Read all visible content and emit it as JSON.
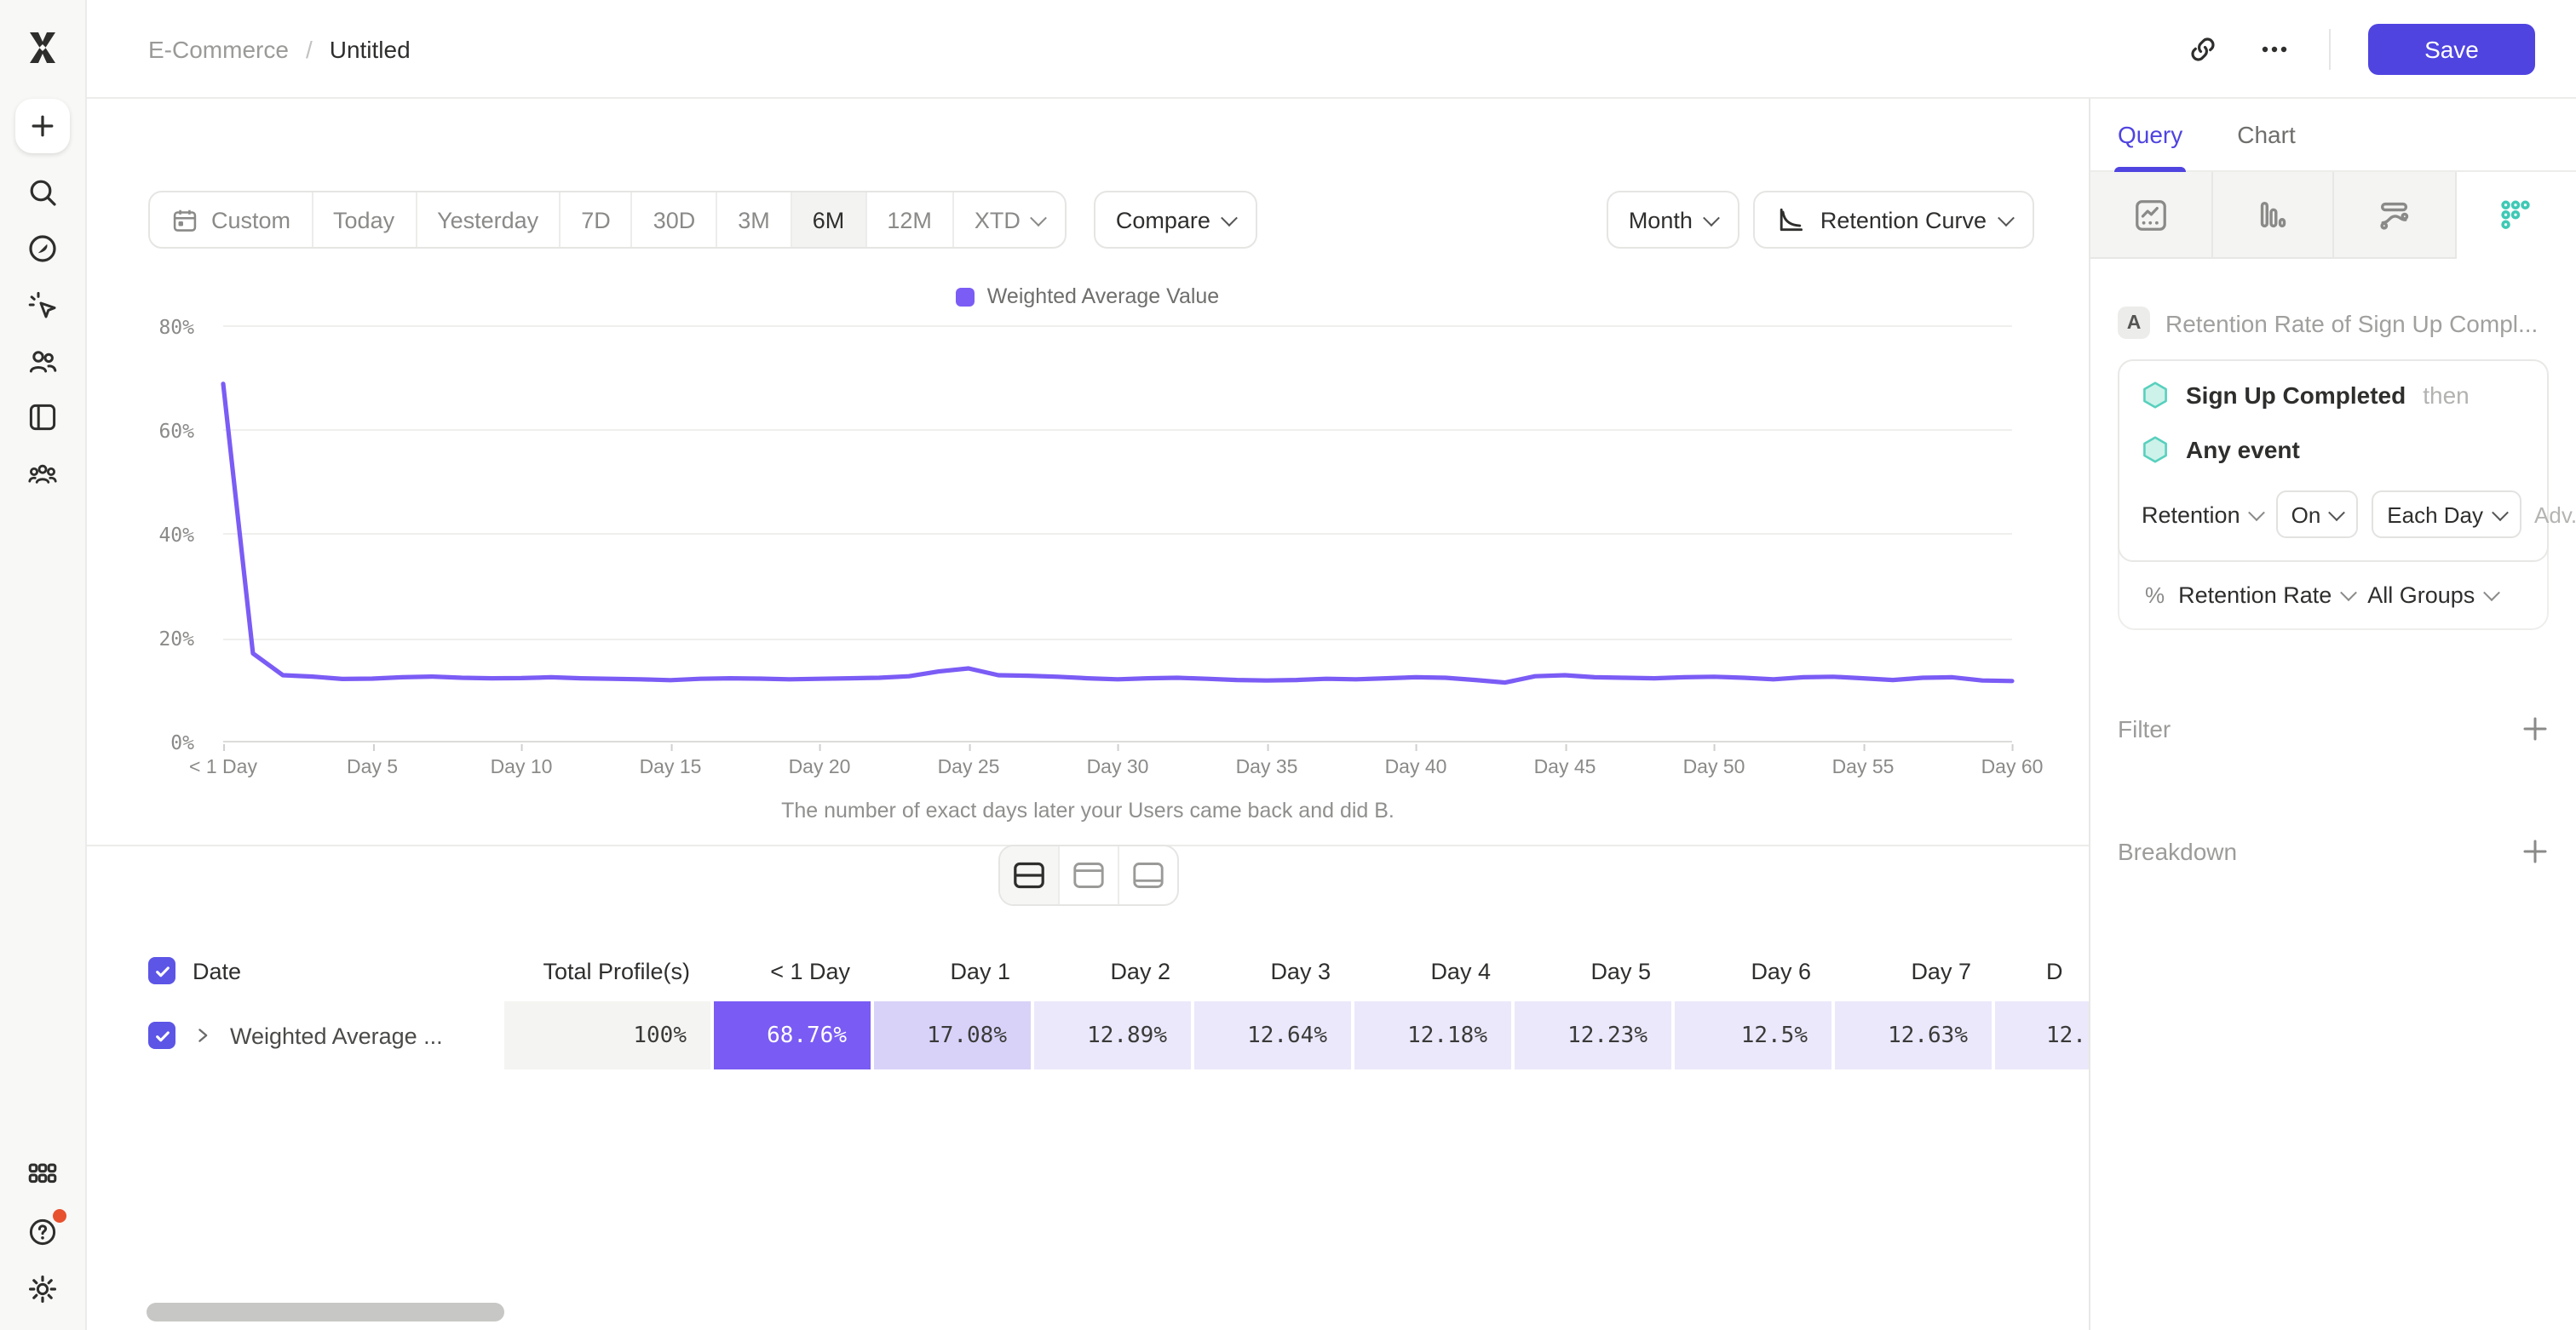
{
  "app": {
    "accent": "#4f44e0",
    "line_color": "#7b5cf5",
    "teal": "#3fc9b5",
    "notification_red": "#e8512d",
    "cell_solid": "#7a5bf4",
    "cell_medium": "#d8d2f8",
    "cell_light": "#ebe8fb"
  },
  "topbar": {
    "breadcrumb": {
      "project": "E-Commerce",
      "separator": "/",
      "title": "Untitled"
    },
    "icons": [
      "link-icon",
      "more-icon"
    ],
    "save_label": "Save"
  },
  "sidebar": {
    "icons": [
      "mixpanel-logo",
      "create-icon",
      "search-icon",
      "explore-icon",
      "click-icon",
      "users-icon",
      "boards-icon",
      "cohorts-icon",
      "apps-icon",
      "help-icon",
      "settings-icon"
    ]
  },
  "toolbar": {
    "ranges": [
      {
        "label": "Custom"
      },
      {
        "label": "Today"
      },
      {
        "label": "Yesterday"
      },
      {
        "label": "7D"
      },
      {
        "label": "30D"
      },
      {
        "label": "3M"
      },
      {
        "label": "6M"
      },
      {
        "label": "12M"
      },
      {
        "label": "XTD"
      }
    ],
    "selected_range": "6M",
    "compare_label": "Compare",
    "granularity_label": "Month",
    "chart_type_label": "Retention Curve"
  },
  "chart_data": {
    "type": "line",
    "legend": [
      "Weighted Average Value"
    ],
    "legend_position": "top-center",
    "ylim": [
      0,
      80
    ],
    "y_ticks": [
      80,
      60,
      40,
      20,
      0
    ],
    "y_tick_labels": [
      "80%",
      "60%",
      "40%",
      "20%",
      "0%"
    ],
    "x_tick_labels": [
      "< 1 Day",
      "Day 5",
      "Day 10",
      "Day 15",
      "Day 20",
      "Day 25",
      "Day 30",
      "Day 35",
      "Day 40",
      "Day 45",
      "Day 50",
      "Day 55",
      "Day 60"
    ],
    "xlabel": "",
    "ylabel": "",
    "caption": "The number of exact days later your Users came back and did B.",
    "grid": true,
    "series": [
      {
        "name": "Weighted Average Value",
        "color": "#7b5cf5",
        "x_unit": "day",
        "values": [
          68.76,
          17.08,
          12.89,
          12.64,
          12.18,
          12.23,
          12.5,
          12.63,
          12.4,
          12.3,
          12.35,
          12.5,
          12.3,
          12.2,
          12.1,
          11.95,
          12.2,
          12.3,
          12.25,
          12.1,
          12.2,
          12.3,
          12.4,
          12.7,
          13.6,
          14.2,
          12.9,
          12.8,
          12.6,
          12.3,
          12.1,
          12.3,
          12.4,
          12.2,
          12.0,
          11.9,
          12.0,
          12.2,
          12.1,
          12.3,
          12.5,
          12.4,
          12.0,
          11.5,
          12.7,
          12.9,
          12.5,
          12.4,
          12.3,
          12.5,
          12.6,
          12.4,
          12.1,
          12.5,
          12.6,
          12.3,
          12.0,
          12.4,
          12.5,
          11.9,
          11.8
        ]
      }
    ]
  },
  "view_toggles": [
    "layout-chart-and-table",
    "layout-chart-top",
    "layout-table-bottom"
  ],
  "table": {
    "headers": [
      "Date",
      "Total Profile(s)",
      "< 1 Day",
      "Day 1",
      "Day 2",
      "Day 3",
      "Day 4",
      "Day 5",
      "Day 6",
      "Day 7",
      "D"
    ],
    "rows": [
      {
        "label": "Weighted Average ...",
        "cells": [
          {
            "value": "100%",
            "style": "gray"
          },
          {
            "value": "68.76%",
            "style": "solid"
          },
          {
            "value": "17.08%",
            "style": "medium"
          },
          {
            "value": "12.89%",
            "style": "light"
          },
          {
            "value": "12.64%",
            "style": "light"
          },
          {
            "value": "12.18%",
            "style": "light"
          },
          {
            "value": "12.23%",
            "style": "light"
          },
          {
            "value": "12.5%",
            "style": "light"
          },
          {
            "value": "12.63%",
            "style": "light"
          },
          {
            "value": "12.",
            "style": "light"
          }
        ]
      }
    ]
  },
  "query_panel": {
    "tabs": [
      {
        "label": "Query",
        "active": true
      },
      {
        "label": "Chart",
        "active": false
      }
    ],
    "chart_type_icons": [
      "insights-icon",
      "funnels-icon",
      "flows-icon",
      "retention-icon"
    ],
    "selected_chart_type": "retention",
    "query": {
      "badge": "A",
      "title": "Retention Rate of Sign Up Compl...",
      "first_event": "Sign Up Completed",
      "then_label": "then",
      "second_event": "Any event",
      "retention_dropdown": "Retention",
      "on_dropdown": "On",
      "bucket_dropdown": "Each Day",
      "advanced_dropdown": "Adv...",
      "percent_symbol": "%",
      "measure_dropdown": "Retention Rate",
      "groups_dropdown": "All Groups"
    },
    "sections": [
      {
        "label": "Filter"
      },
      {
        "label": "Breakdown"
      }
    ]
  }
}
